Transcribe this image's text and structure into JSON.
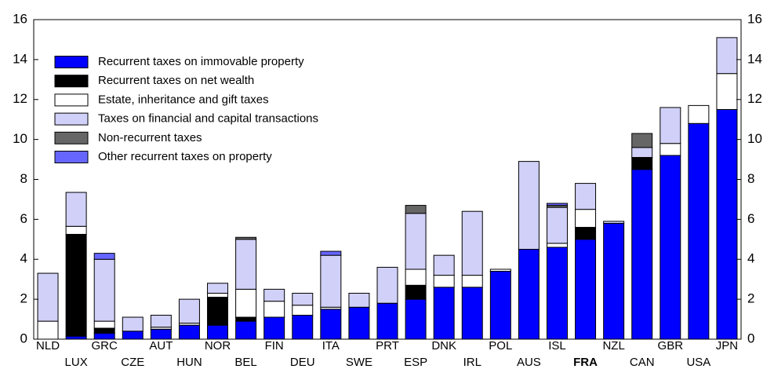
{
  "chart_data": {
    "type": "stacked_bar",
    "categories": [
      "NLD",
      "LUX",
      "GRC",
      "CZE",
      "AUT",
      "HUN",
      "NOR",
      "BEL",
      "FIN",
      "DEU",
      "ITA",
      "SWE",
      "PRT",
      "ESP",
      "DNK",
      "IRL",
      "POL",
      "AUS",
      "ISL",
      "FRA",
      "NZL",
      "CAN",
      "GBR",
      "USA",
      "JPN"
    ],
    "highlight_category": 19,
    "series": [
      {
        "name": "Recurrent taxes on immovable property",
        "color": "#0000ff",
        "values": [
          0,
          0.15,
          0.3,
          0.4,
          0.5,
          0.7,
          0.7,
          0.9,
          1.1,
          1.2,
          1.5,
          1.6,
          1.8,
          2.0,
          2.6,
          2.6,
          3.4,
          4.5,
          4.6,
          5.0,
          5.8,
          8.5,
          9.2,
          10.8,
          11.5
        ]
      },
      {
        "name": "Recurrent taxes on net wealth",
        "color": "#000000",
        "values": [
          0,
          5.1,
          0.25,
          0,
          0,
          0,
          1.4,
          0.2,
          0,
          0,
          0,
          0,
          0,
          0.7,
          0,
          0,
          0,
          0,
          0,
          0.6,
          0,
          0.6,
          0,
          0,
          0
        ]
      },
      {
        "name": "Estate, inheritance and gift taxes",
        "color": "#ffffff",
        "values": [
          0.9,
          0.4,
          0.35,
          0,
          0.1,
          0.1,
          0.2,
          1.4,
          0.8,
          0.5,
          0.1,
          0,
          0,
          0.8,
          0.6,
          0.6,
          0.1,
          0,
          0.2,
          0.9,
          0,
          0,
          0.6,
          0.9,
          1.8
        ]
      },
      {
        "name": "Taxes on financial and capital transactions",
        "color": "#d0d0f8",
        "values": [
          2.4,
          1.7,
          3.1,
          0.7,
          0.6,
          1.2,
          0.5,
          2.5,
          0.6,
          0.6,
          2.6,
          0.7,
          1.8,
          2.8,
          1.0,
          3.2,
          0,
          4.4,
          1.8,
          1.3,
          0.1,
          0.5,
          1.8,
          0,
          1.8
        ]
      },
      {
        "name": "Non-recurrent taxes",
        "color": "#666666",
        "values": [
          0,
          0,
          0,
          0,
          0,
          0,
          0,
          0.1,
          0,
          0,
          0,
          0,
          0,
          0.4,
          0,
          0,
          0,
          0,
          0.1,
          0,
          0,
          0.7,
          0,
          0,
          0
        ]
      },
      {
        "name": "Other recurrent taxes on property",
        "color": "#6666ff",
        "values": [
          0,
          0,
          0.3,
          0,
          0,
          0,
          0,
          0,
          0,
          0,
          0.2,
          0,
          0,
          0,
          0,
          0,
          0,
          0,
          0.1,
          0,
          0,
          0,
          0,
          0,
          0
        ]
      }
    ],
    "ylim": [
      0,
      16
    ],
    "yticks": [
      0,
      2,
      4,
      6,
      8,
      10,
      12,
      14,
      16
    ]
  }
}
